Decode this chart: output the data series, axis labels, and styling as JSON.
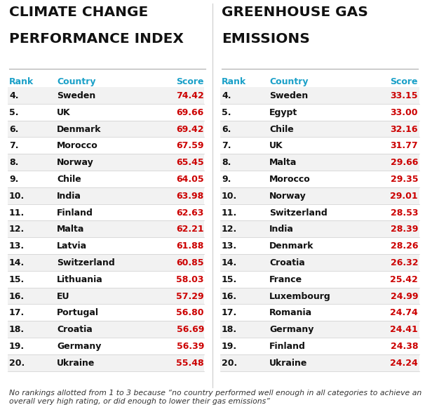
{
  "title_left_line1": "CLIMATE CHANGE",
  "title_left_line2": "PERFORMANCE INDEX",
  "title_right_line1": "GREENHOUSE GAS",
  "title_right_line2": "EMISSIONS",
  "header_rank": "Rank",
  "header_country": "Country",
  "header_score": "Score",
  "ccpi": [
    {
      "rank": "4.",
      "country": "Sweden",
      "score": "74.42"
    },
    {
      "rank": "5.",
      "country": "UK",
      "score": "69.66"
    },
    {
      "rank": "6.",
      "country": "Denmark",
      "score": "69.42"
    },
    {
      "rank": "7.",
      "country": "Morocco",
      "score": "67.59"
    },
    {
      "rank": "8.",
      "country": "Norway",
      "score": "65.45"
    },
    {
      "rank": "9.",
      "country": "Chile",
      "score": "64.05"
    },
    {
      "rank": "10.",
      "country": "India",
      "score": "63.98"
    },
    {
      "rank": "11.",
      "country": "Finland",
      "score": "62.63"
    },
    {
      "rank": "12.",
      "country": "Malta",
      "score": "62.21"
    },
    {
      "rank": "13.",
      "country": "Latvia",
      "score": "61.88"
    },
    {
      "rank": "14.",
      "country": "Switzerland",
      "score": "60.85"
    },
    {
      "rank": "15.",
      "country": "Lithuania",
      "score": "58.03"
    },
    {
      "rank": "16.",
      "country": "EU",
      "score": "57.29"
    },
    {
      "rank": "17.",
      "country": "Portugal",
      "score": "56.80"
    },
    {
      "rank": "18.",
      "country": "Croatia",
      "score": "56.69"
    },
    {
      "rank": "19.",
      "country": "Germany",
      "score": "56.39"
    },
    {
      "rank": "20.",
      "country": "Ukraine",
      "score": "55.48"
    }
  ],
  "gge": [
    {
      "rank": "4.",
      "country": "Sweden",
      "score": "33.15"
    },
    {
      "rank": "5.",
      "country": "Egypt",
      "score": "33.00"
    },
    {
      "rank": "6.",
      "country": "Chile",
      "score": "32.16"
    },
    {
      "rank": "7.",
      "country": "UK",
      "score": "31.77"
    },
    {
      "rank": "8.",
      "country": "Malta",
      "score": "29.66"
    },
    {
      "rank": "9.",
      "country": "Morocco",
      "score": "29.35"
    },
    {
      "rank": "10.",
      "country": "Norway",
      "score": "29.01"
    },
    {
      "rank": "11.",
      "country": "Switzerland",
      "score": "28.53"
    },
    {
      "rank": "12.",
      "country": "India",
      "score": "28.39"
    },
    {
      "rank": "13.",
      "country": "Denmark",
      "score": "28.26"
    },
    {
      "rank": "14.",
      "country": "Croatia",
      "score": "26.32"
    },
    {
      "rank": "15.",
      "country": "France",
      "score": "25.42"
    },
    {
      "rank": "16.",
      "country": "Luxembourg",
      "score": "24.99"
    },
    {
      "rank": "17.",
      "country": "Romania",
      "score": "24.74"
    },
    {
      "rank": "18.",
      "country": "Germany",
      "score": "24.41"
    },
    {
      "rank": "19.",
      "country": "Finland",
      "score": "24.38"
    },
    {
      "rank": "20.",
      "country": "Ukraine",
      "score": "24.24"
    }
  ],
  "footnote_plain": "No rankings allotted from 1 to 3 because “no country performed well enough in all categories to achieve an overall very high rating, or did enough to lower their gas emissions”",
  "color_title": "#111111",
  "color_header": "#1aa0c8",
  "color_rank": "#111111",
  "color_country": "#111111",
  "color_score": "#cc0000",
  "color_bg": "#ffffff",
  "title_fontsize": 14.5,
  "header_fontsize": 9.0,
  "data_fontsize": 9.0,
  "footnote_fontsize": 7.8
}
